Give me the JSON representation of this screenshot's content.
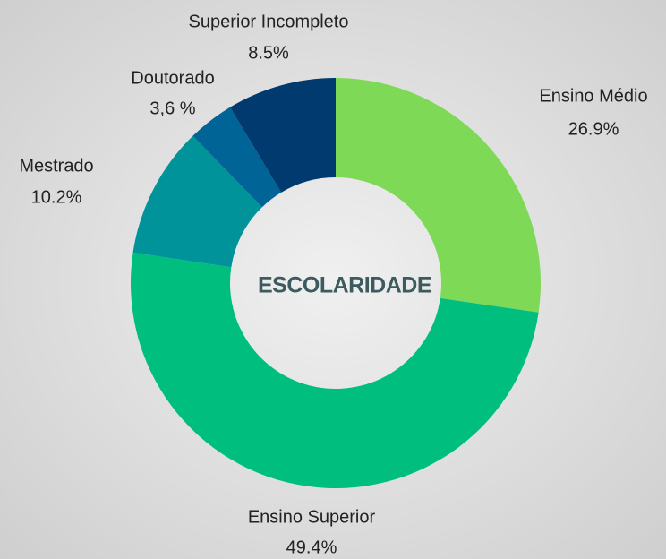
{
  "chart_data": {
    "type": "donut",
    "title": "ESCOLARIDADE",
    "categories": [
      "Ensino Médio",
      "Ensino Superior",
      "Mestrado",
      "Doutorado",
      "Superior Incompleto"
    ],
    "values": [
      26.9,
      49.4,
      10.2,
      3.6,
      8.5
    ],
    "value_labels": [
      "26.9%",
      "49.4%",
      "10.2%",
      "3,6 %",
      "8.5%"
    ],
    "colors": [
      "#7ed957",
      "#00be7e",
      "#00939a",
      "#006496",
      "#003a6e"
    ]
  }
}
